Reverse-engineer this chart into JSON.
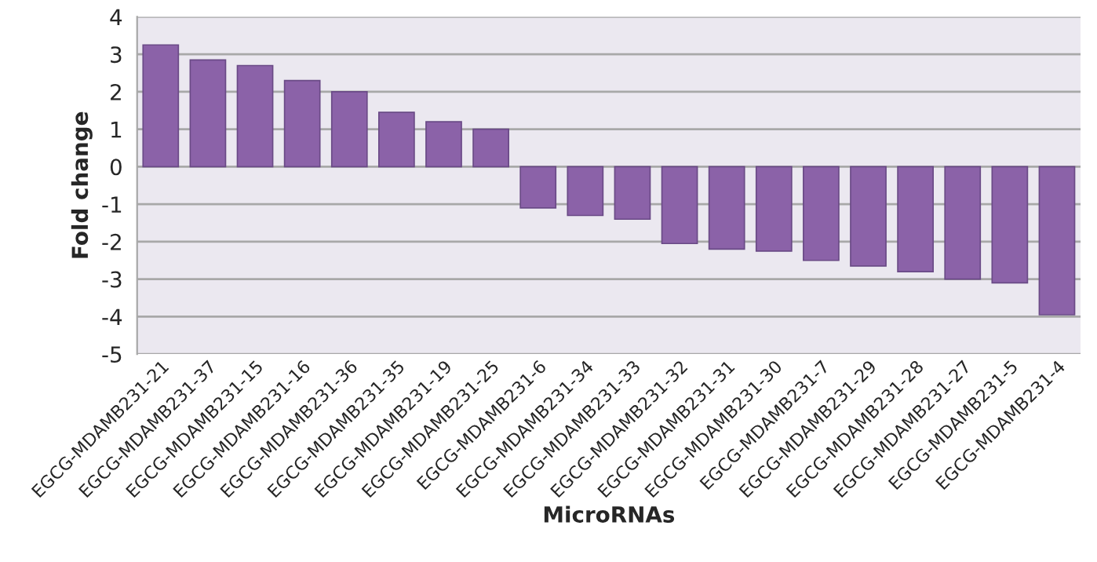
{
  "chart_data": {
    "type": "bar",
    "xlabel": "MicroRNAs",
    "ylabel": "Fold change",
    "categories": [
      "EGCG-MDAMB231-21",
      "EGCG-MDAMB231-37",
      "EGCG-MDAMB231-15",
      "EGCG-MDAMB231-16",
      "EGCG-MDAMB231-36",
      "EGCG-MDAMB231-35",
      "EGCG-MDAMB231-19",
      "EGCG-MDAMB231-25",
      "EGCG-MDAMB231-6",
      "EGCG-MDAMB231-34",
      "EGCG-MDAMB231-33",
      "EGCG-MDAMB231-32",
      "EGCG-MDAMB231-31",
      "EGCG-MDAMB231-30",
      "EGCG-MDAMB231-7",
      "EGCG-MDAMB231-29",
      "EGCG-MDAMB231-28",
      "EGCG-MDAMB231-27",
      "EGCG-MDAMB231-5",
      "EGCG-MDAMB231-4"
    ],
    "values": [
      3.25,
      2.85,
      2.7,
      2.3,
      2.0,
      1.45,
      1.2,
      1.0,
      -1.1,
      -1.3,
      -1.4,
      -2.05,
      -2.2,
      -2.25,
      -2.5,
      -2.65,
      -2.8,
      -3.0,
      -3.1,
      -3.95
    ],
    "color": "#8b62a8",
    "ylim": [
      -5,
      4
    ],
    "yticks": [
      -5,
      -4,
      -3,
      -2,
      -1,
      0,
      1,
      2,
      3,
      4
    ],
    "grid": "y"
  }
}
